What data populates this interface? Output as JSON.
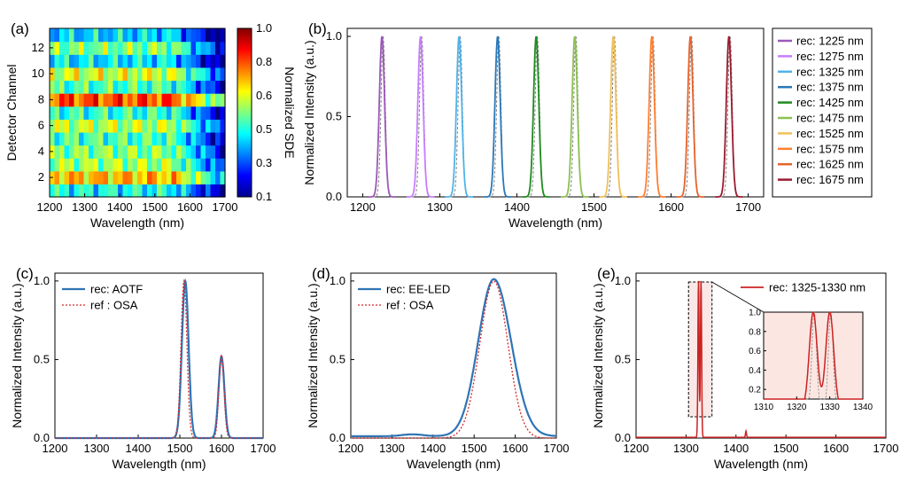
{
  "chart_data": [
    {
      "panel": "(a)",
      "type": "heatmap",
      "xlabel": "Wavelength (nm)",
      "ylabel": "Detector Channel",
      "xlim": [
        1200,
        1700
      ],
      "xticks": [
        1200,
        1300,
        1400,
        1500,
        1600,
        1700
      ],
      "yticks": [
        2,
        4,
        6,
        8,
        10,
        12
      ],
      "channels": 13,
      "colorbar": {
        "label": "Normalized SDE",
        "range": [
          0.1,
          1.0
        ],
        "ticks": [
          "1.0",
          "0.8",
          "0.6",
          "0.5",
          "0.3",
          "0.1"
        ]
      },
      "channel_levels": [
        0.45,
        0.72,
        0.58,
        0.55,
        0.5,
        0.6,
        0.48,
        0.82,
        0.5,
        0.62,
        0.42,
        0.55,
        0.4
      ],
      "ramp_nm": 1550
    },
    {
      "panel": "(b)",
      "type": "line",
      "xlabel": "Wavelength (nm)",
      "ylabel": "Normalized Intensity (a.u.)",
      "xlim": [
        1180,
        1720
      ],
      "ylim": [
        0,
        1.05
      ],
      "xticks": [
        1200,
        1300,
        1400,
        1500,
        1600,
        1700
      ],
      "yticks": [
        "0.0",
        "0.5",
        "1.0"
      ],
      "peak_fwhm_nm": 8,
      "series": [
        {
          "name": "rec: 1225 nm",
          "center": 1225,
          "color": "#9b59b6"
        },
        {
          "name": "rec: 1275 nm",
          "center": 1275,
          "color": "#c77dff"
        },
        {
          "name": "rec: 1325 nm",
          "center": 1325,
          "color": "#4fb3e8"
        },
        {
          "name": "rec: 1375 nm",
          "center": 1375,
          "color": "#2a78b8"
        },
        {
          "name": "rec: 1425 nm",
          "center": 1425,
          "color": "#1f8a1f"
        },
        {
          "name": "rec: 1475 nm",
          "center": 1475,
          "color": "#8cc152"
        },
        {
          "name": "rec: 1525 nm",
          "center": 1525,
          "color": "#f0c05a"
        },
        {
          "name": "rec: 1575 nm",
          "center": 1575,
          "color": "#ff7f32"
        },
        {
          "name": "rec: 1625 nm",
          "center": 1625,
          "color": "#e8632b"
        },
        {
          "name": "rec: 1675 nm",
          "center": 1675,
          "color": "#9b1b30"
        }
      ]
    },
    {
      "panel": "(c)",
      "type": "line",
      "xlabel": "Wavelength (nm)",
      "ylabel": "Normalized Intensity (a.u.)",
      "xlim": [
        1200,
        1700
      ],
      "ylim": [
        0,
        1.05
      ],
      "xticks": [
        1200,
        1300,
        1400,
        1500,
        1600,
        1700
      ],
      "yticks": [
        "0.0",
        "0.5",
        "1.0"
      ],
      "series": [
        {
          "name": "rec: AOTF",
          "style": "solid",
          "color": "#2e74b5",
          "peaks": [
            {
              "center": 1513,
              "amp": 1.0,
              "sigma": 8
            },
            {
              "center": 1600,
              "amp": 0.52,
              "sigma": 7
            }
          ]
        },
        {
          "name": "ref : OSA",
          "style": "dotted",
          "color": "#d62728",
          "peaks": [
            {
              "center": 1510,
              "amp": 1.0,
              "sigma": 7
            },
            {
              "center": 1600,
              "amp": 0.53,
              "sigma": 6
            }
          ]
        }
      ]
    },
    {
      "panel": "(d)",
      "type": "line",
      "xlabel": "Wavelength (nm)",
      "ylabel": "Normalized Intensity (a.u.)",
      "xlim": [
        1200,
        1700
      ],
      "ylim": [
        0,
        1.05
      ],
      "xticks": [
        1200,
        1300,
        1400,
        1500,
        1600,
        1700
      ],
      "yticks": [
        "0.0",
        "0.5",
        "1.0"
      ],
      "series": [
        {
          "name": "rec: EE-LED",
          "style": "solid",
          "color": "#2e74b5",
          "peak": 1548,
          "sigma_left": 38,
          "sigma_right": 42
        },
        {
          "name": "ref : OSA",
          "style": "dotted",
          "color": "#d62728",
          "peak": 1548,
          "sigma_left": 34,
          "sigma_right": 34
        }
      ]
    },
    {
      "panel": "(e)",
      "type": "line",
      "xlabel": "Wavelength (nm)",
      "ylabel": "Normalized Intensity (a.u.)",
      "xlim": [
        1200,
        1700
      ],
      "ylim": [
        0,
        1.05
      ],
      "xticks": [
        1200,
        1300,
        1400,
        1500,
        1600,
        1700
      ],
      "yticks": [
        "0.0",
        "0.5",
        "1.0"
      ],
      "series": [
        {
          "name": "rec: 1325-1330 nm",
          "color": "#cc2222",
          "peaks": [
            {
              "center": 1325,
              "amp": 1.0,
              "sigma": 1.2
            },
            {
              "center": 1330,
              "amp": 1.0,
              "sigma": 1.2
            },
            {
              "center": 1420,
              "amp": 0.04,
              "sigma": 1.0
            }
          ]
        }
      ],
      "inset": {
        "xlim": [
          1310,
          1340
        ],
        "ylim": [
          0.1,
          1.0
        ],
        "xticks": [
          1310,
          1320,
          1330,
          1340
        ],
        "yticks": [
          "0.2",
          "0.4",
          "0.6",
          "0.8",
          "1.0"
        ]
      }
    }
  ]
}
